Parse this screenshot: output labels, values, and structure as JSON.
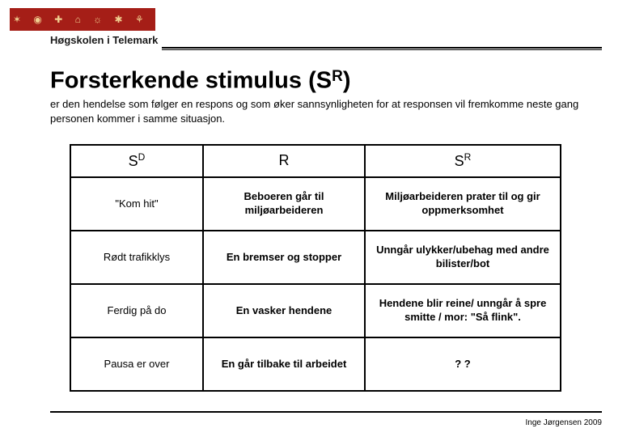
{
  "header": {
    "logo_glyphs": "✶ ◉ ✚ ⌂ ☼ ✱ ⚘",
    "institution": "Høgskolen i Telemark"
  },
  "title": {
    "main_before": "Forsterkende stimulus (S",
    "main_sup": "R",
    "main_after": ")"
  },
  "subtitle": "er den hendelse som følger en respons og som øker sannsynligheten for at responsen vil fremkomme neste gang personen kommer i samme situasjon.",
  "table": {
    "head": {
      "c1_base": "S",
      "c1_sup": "D",
      "c2": "R",
      "c3_base": "S",
      "c3_sup": "R"
    },
    "rows": [
      {
        "sd": "\"Kom hit\"",
        "r": "Beboeren går til miljøarbeideren",
        "sr": "Miljøarbeideren prater til og gir oppmerksomhet"
      },
      {
        "sd": "Rødt trafikklys",
        "r": "En bremser og stopper",
        "sr": "Unngår ulykker/ubehag med andre bilister/bot"
      },
      {
        "sd": "Ferdig på do",
        "r": "En vasker hendene",
        "sr": "Hendene blir reine/ unngår å spre smitte / mor: \"Så flink\"."
      },
      {
        "sd": "Pausa er over",
        "r": "En går tilbake til arbeidet",
        "sr": "? ?"
      }
    ]
  },
  "footer": "Inge Jørgensen 2009",
  "colors": {
    "logo_bg": "#a51e17",
    "logo_icon": "#f0d090",
    "text": "#000000",
    "bg": "#ffffff"
  }
}
